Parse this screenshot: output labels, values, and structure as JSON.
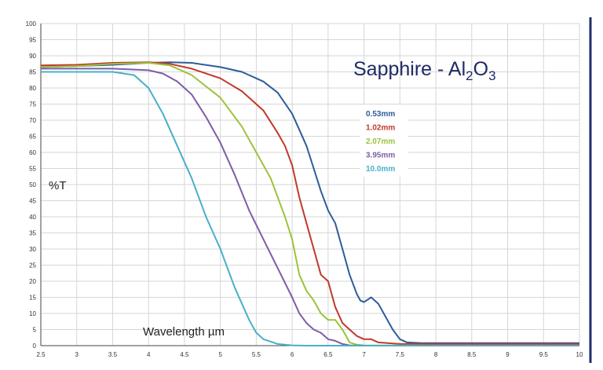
{
  "chart_data": {
    "type": "line",
    "title": {
      "prefix": "Sapphire - Al",
      "sub1": "2",
      "mid": "O",
      "sub2": "3"
    },
    "xlabel": "Wavelength µm",
    "ylabel": "%T",
    "xlim": [
      2.5,
      10
    ],
    "ylim": [
      0,
      100
    ],
    "x_ticks": [
      "2.5",
      "3",
      "3.5",
      "4",
      "4.5",
      "5",
      "5.5",
      "6",
      "6.5",
      "7",
      "7.5",
      "8",
      "8.5",
      "9",
      "9.5",
      "10"
    ],
    "y_ticks": [
      "0",
      "5",
      "10",
      "15",
      "20",
      "25",
      "30",
      "35",
      "40",
      "45",
      "50",
      "55",
      "60",
      "65",
      "70",
      "75",
      "80",
      "85",
      "90",
      "95",
      "100"
    ],
    "grid": true,
    "legend_position": "top-right",
    "series": [
      {
        "name": "0.53mm",
        "color": "#2e5c9a",
        "points": [
          [
            2.5,
            86.5
          ],
          [
            3,
            86.8
          ],
          [
            3.5,
            87.2
          ],
          [
            4,
            87.8
          ],
          [
            4.3,
            88
          ],
          [
            4.6,
            87.8
          ],
          [
            5,
            86.5
          ],
          [
            5.3,
            85
          ],
          [
            5.6,
            82
          ],
          [
            5.8,
            78.5
          ],
          [
            6,
            72
          ],
          [
            6.1,
            67
          ],
          [
            6.2,
            62
          ],
          [
            6.3,
            55
          ],
          [
            6.4,
            48
          ],
          [
            6.5,
            42
          ],
          [
            6.6,
            38
          ],
          [
            6.7,
            30
          ],
          [
            6.8,
            22
          ],
          [
            6.9,
            16
          ],
          [
            6.95,
            14
          ],
          [
            7,
            13.5
          ],
          [
            7.1,
            15
          ],
          [
            7.2,
            13
          ],
          [
            7.3,
            9
          ],
          [
            7.4,
            5
          ],
          [
            7.5,
            2
          ],
          [
            7.6,
            1
          ],
          [
            7.8,
            0.8
          ],
          [
            8.5,
            0.8
          ],
          [
            9.5,
            0.8
          ],
          [
            10,
            0.8
          ]
        ]
      },
      {
        "name": "1.02mm",
        "color": "#c0392b",
        "points": [
          [
            2.5,
            87
          ],
          [
            3,
            87.2
          ],
          [
            3.5,
            87.8
          ],
          [
            4,
            88
          ],
          [
            4.3,
            87.5
          ],
          [
            4.6,
            86
          ],
          [
            5,
            83
          ],
          [
            5.3,
            79
          ],
          [
            5.6,
            73
          ],
          [
            5.8,
            66
          ],
          [
            5.9,
            62
          ],
          [
            6,
            56
          ],
          [
            6.1,
            46
          ],
          [
            6.2,
            38
          ],
          [
            6.3,
            30
          ],
          [
            6.4,
            22
          ],
          [
            6.5,
            20
          ],
          [
            6.6,
            12
          ],
          [
            6.7,
            7
          ],
          [
            6.8,
            5
          ],
          [
            6.9,
            3
          ],
          [
            7,
            2
          ],
          [
            7.1,
            2
          ],
          [
            7.2,
            1
          ],
          [
            7.5,
            0.5
          ],
          [
            8,
            0.5
          ],
          [
            9,
            0.5
          ],
          [
            10,
            0.5
          ]
        ]
      },
      {
        "name": "2.07mm",
        "color": "#9cc33a",
        "points": [
          [
            2.5,
            86.5
          ],
          [
            3,
            86.8
          ],
          [
            3.5,
            87.5
          ],
          [
            4,
            87.8
          ],
          [
            4.3,
            87
          ],
          [
            4.6,
            84
          ],
          [
            5,
            77
          ],
          [
            5.3,
            68
          ],
          [
            5.5,
            60
          ],
          [
            5.7,
            52
          ],
          [
            5.9,
            40
          ],
          [
            6,
            33
          ],
          [
            6.1,
            22
          ],
          [
            6.2,
            17
          ],
          [
            6.3,
            14
          ],
          [
            6.4,
            10
          ],
          [
            6.5,
            8
          ],
          [
            6.6,
            8
          ],
          [
            6.7,
            5
          ],
          [
            6.8,
            1
          ],
          [
            6.9,
            0.3
          ],
          [
            7,
            0.1
          ],
          [
            8,
            0
          ],
          [
            9,
            0
          ],
          [
            10,
            0
          ]
        ]
      },
      {
        "name": "3.95mm",
        "color": "#7e5ca8",
        "points": [
          [
            2.5,
            86
          ],
          [
            3,
            86
          ],
          [
            3.5,
            86
          ],
          [
            4,
            85.5
          ],
          [
            4.2,
            84.5
          ],
          [
            4.4,
            82
          ],
          [
            4.6,
            78
          ],
          [
            4.8,
            71
          ],
          [
            5,
            63
          ],
          [
            5.2,
            53
          ],
          [
            5.4,
            42
          ],
          [
            5.6,
            33
          ],
          [
            5.8,
            24
          ],
          [
            6,
            15
          ],
          [
            6.1,
            10
          ],
          [
            6.2,
            7
          ],
          [
            6.3,
            5
          ],
          [
            6.4,
            4
          ],
          [
            6.5,
            2
          ],
          [
            6.6,
            1.5
          ],
          [
            6.7,
            0.5
          ],
          [
            6.8,
            0.1
          ],
          [
            7,
            0
          ],
          [
            8,
            0
          ],
          [
            9,
            0
          ],
          [
            10,
            0
          ]
        ]
      },
      {
        "name": "10.0mm",
        "color": "#47b0c8",
        "points": [
          [
            2.5,
            85
          ],
          [
            3,
            85
          ],
          [
            3.5,
            85
          ],
          [
            3.8,
            84
          ],
          [
            4,
            80
          ],
          [
            4.2,
            72
          ],
          [
            4.4,
            62
          ],
          [
            4.6,
            52
          ],
          [
            4.8,
            40
          ],
          [
            5,
            30
          ],
          [
            5.2,
            18
          ],
          [
            5.4,
            8
          ],
          [
            5.5,
            4
          ],
          [
            5.6,
            2
          ],
          [
            5.8,
            0.5
          ],
          [
            6,
            0.1
          ],
          [
            6.2,
            0
          ],
          [
            7,
            0
          ],
          [
            8,
            0
          ],
          [
            9,
            0
          ],
          [
            10,
            0
          ]
        ]
      }
    ]
  }
}
